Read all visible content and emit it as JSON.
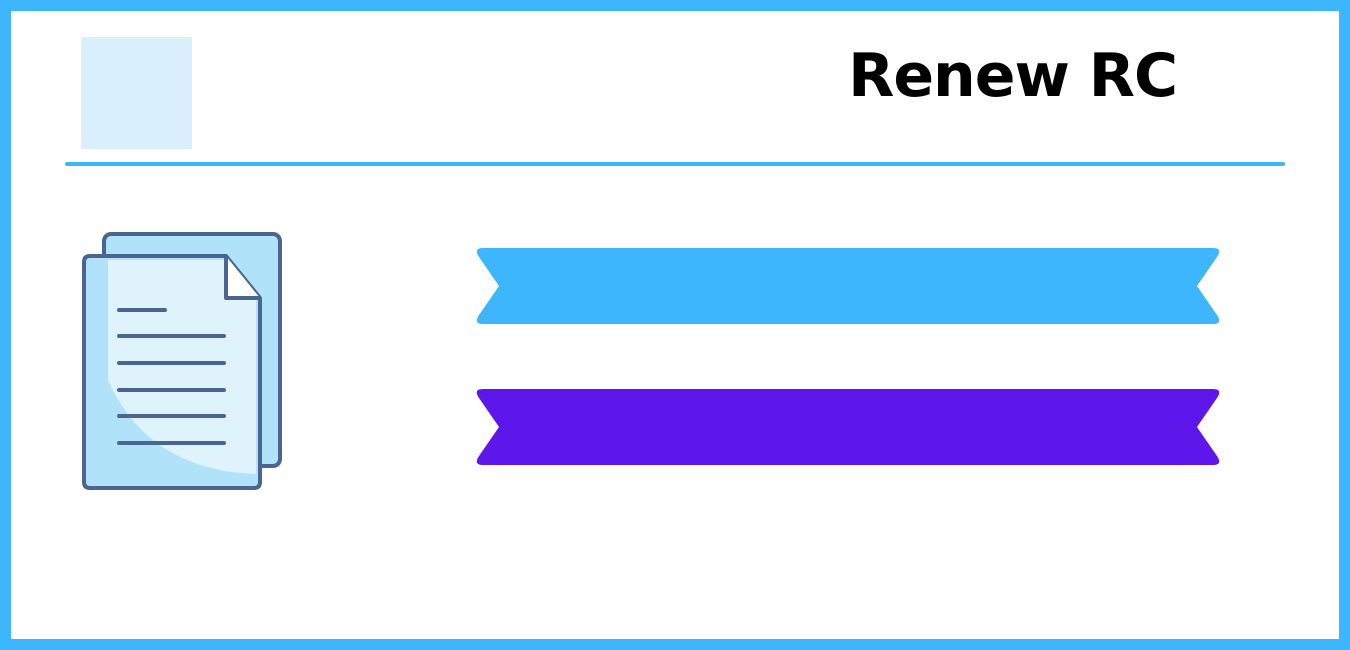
{
  "header": {
    "title": "Renew RC",
    "logo": "blank-logo-placeholder"
  },
  "icons": {
    "document": "document-copy-icon"
  },
  "banners": [
    {
      "name": "ribbon-banner-1",
      "text": "",
      "color": "#3eb6fd"
    },
    {
      "name": "ribbon-banner-2",
      "text": "",
      "color": "#5e17eb"
    }
  ],
  "colors": {
    "frame": "#3eb6fd",
    "divider": "#3eb6fd",
    "logo_placeholder": "#d9f0fc",
    "doc_outline": "#4b6592",
    "doc_fill_back": "#b0e3fa",
    "doc_fill_front": "#dff3fd"
  }
}
